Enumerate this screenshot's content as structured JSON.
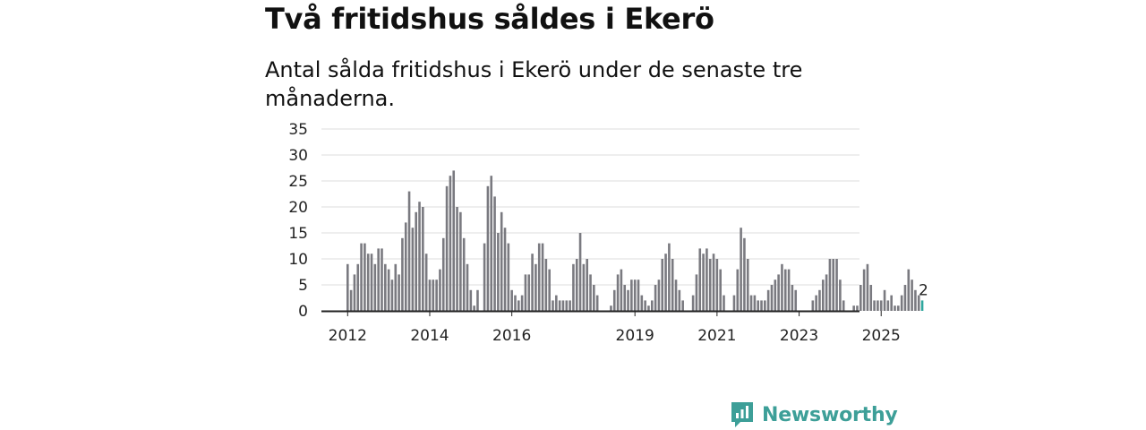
{
  "header": {
    "title": "Två fritidshus såldes i Ekerö",
    "subtitle": "Antal sålda fritidshus i Ekerö under de senaste tre månaderna."
  },
  "logo": {
    "text": "Newsworthy",
    "icon": "newsworthy-logo-icon"
  },
  "colors": {
    "bar": "#7a7a80",
    "highlight": "#2fa79e",
    "grid": "#dddddd",
    "axis": "#222222"
  },
  "chart_data": {
    "type": "bar",
    "title": "Två fritidshus såldes i Ekerö",
    "subtitle": "Antal sålda fritidshus i Ekerö under de senaste tre månaderna.",
    "xlabel": "",
    "ylabel": "",
    "ylim": [
      0,
      35
    ],
    "yticks": [
      0,
      5,
      10,
      15,
      20,
      25,
      30,
      35
    ],
    "grid": true,
    "frequency": "monthly",
    "start": "2012-01",
    "xtick_labels": [
      {
        "label": "2012",
        "month": "2012-01"
      },
      {
        "label": "2014",
        "month": "2014-01"
      },
      {
        "label": "2016",
        "month": "2016-01"
      },
      {
        "label": "2019",
        "month": "2019-01"
      },
      {
        "label": "2021",
        "month": "2021-01"
      },
      {
        "label": "2023",
        "month": "2023-01"
      },
      {
        "label": "2025",
        "month": "2025-01"
      }
    ],
    "values": [
      9,
      4,
      7,
      9,
      13,
      13,
      11,
      11,
      9,
      12,
      12,
      9,
      8,
      6,
      9,
      7,
      14,
      17,
      23,
      16,
      19,
      21,
      20,
      11,
      6,
      6,
      6,
      8,
      14,
      24,
      26,
      27,
      20,
      19,
      14,
      9,
      4,
      1,
      4,
      0,
      13,
      24,
      26,
      22,
      15,
      19,
      16,
      13,
      4,
      3,
      2,
      3,
      7,
      7,
      11,
      9,
      13,
      13,
      10,
      8,
      2,
      3,
      2,
      2,
      2,
      2,
      9,
      10,
      15,
      9,
      10,
      7,
      5,
      3,
      0,
      0,
      0,
      1,
      4,
      7,
      8,
      5,
      4,
      6,
      6,
      6,
      3,
      2,
      1,
      2,
      5,
      6,
      10,
      11,
      13,
      10,
      6,
      4,
      2,
      0,
      0,
      3,
      7,
      12,
      11,
      12,
      10,
      11,
      10,
      8,
      3,
      0,
      0,
      3,
      8,
      16,
      14,
      10,
      3,
      3,
      2,
      2,
      2,
      4,
      5,
      6,
      7,
      9,
      8,
      8,
      5,
      4,
      0,
      0,
      0,
      0,
      2,
      3,
      4,
      6,
      7,
      10,
      10,
      10,
      6,
      2,
      0,
      0,
      1,
      1,
      5,
      8,
      9,
      5,
      2,
      2,
      2,
      4,
      2,
      3,
      1,
      1,
      3,
      5,
      8,
      6,
      4,
      3,
      2
    ],
    "highlight_index": 168,
    "annotation": {
      "text": "2",
      "index": 168
    }
  }
}
